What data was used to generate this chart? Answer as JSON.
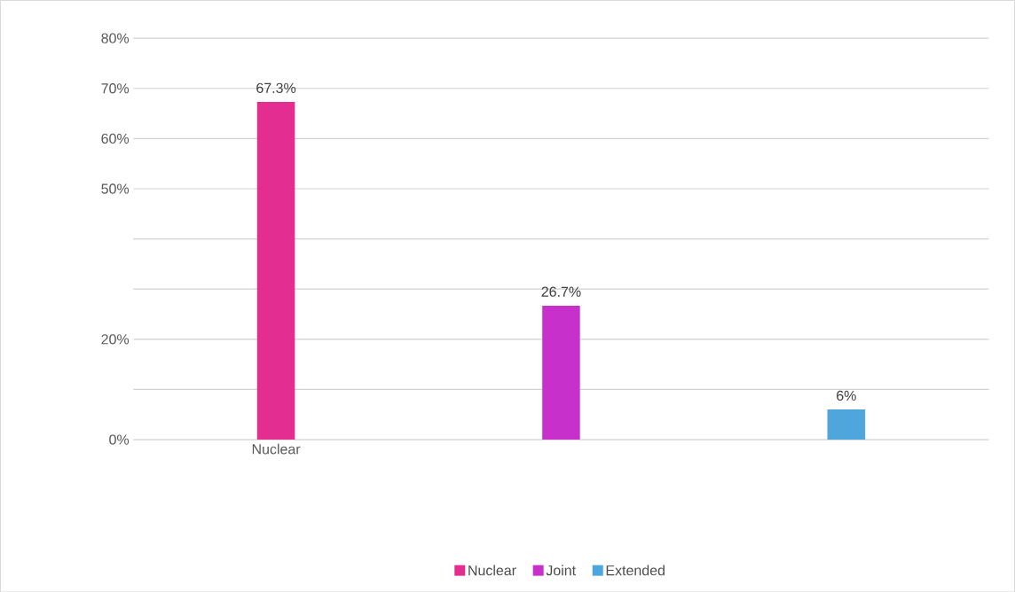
{
  "chart_data": {
    "type": "bar",
    "categories": [
      "Nuclear",
      null,
      null
    ],
    "series": [
      {
        "name": "Nuclear",
        "color": "#e32d91",
        "values": [
          67.3,
          null,
          null
        ],
        "value_labels": [
          "67.3%",
          null,
          null
        ]
      },
      {
        "name": "Joint",
        "color": "#c830cc",
        "values": [
          null,
          26.7,
          null
        ],
        "value_labels": [
          null,
          "26.7%",
          null
        ]
      },
      {
        "name": "Extended",
        "color": "#4ea6dc",
        "values": [
          null,
          null,
          6
        ],
        "value_labels": [
          null,
          null,
          "6%"
        ]
      }
    ],
    "ylim": [
      0,
      80
    ],
    "yticks": [
      {
        "value": 0,
        "label": "0%"
      },
      {
        "value": 10,
        "label": null
      },
      {
        "value": 20,
        "label": "20%"
      },
      {
        "value": 30,
        "label": null
      },
      {
        "value": 40,
        "label": null
      },
      {
        "value": 50,
        "label": "50%"
      },
      {
        "value": 60,
        "label": "60%"
      },
      {
        "value": 70,
        "label": "70%"
      },
      {
        "value": 80,
        "label": "80%"
      }
    ],
    "grid": "y",
    "legend": "bottom"
  }
}
